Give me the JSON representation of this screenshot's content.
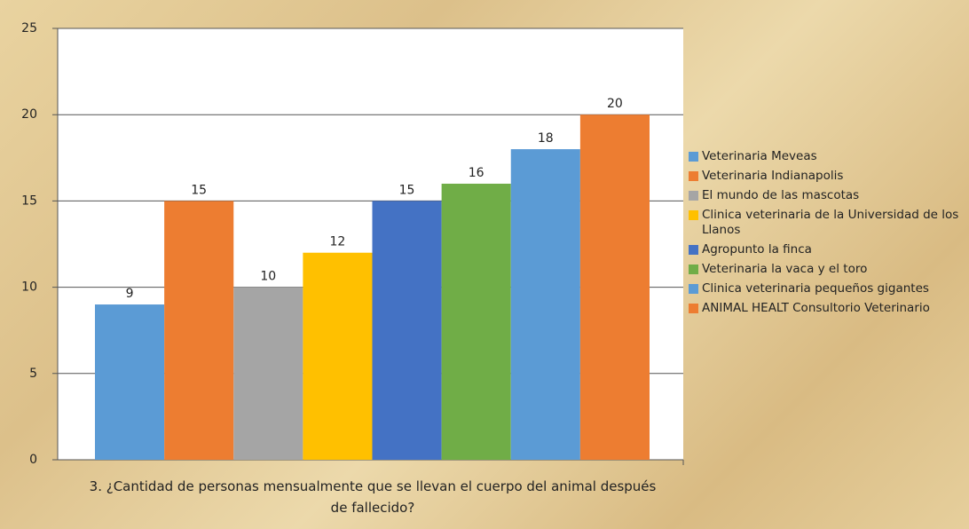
{
  "chart_data": {
    "type": "bar",
    "xlabel": "3. ¿Cantidad de personas mensualmente que se llevan el cuerpo del animal después de fallecido?",
    "series": [
      {
        "name": "Veterinaria Meveas",
        "color": "#5b9bd5",
        "values": [
          9
        ]
      },
      {
        "name": "Veterinaria Indianapolis",
        "color": "#ed7d31",
        "values": [
          15
        ]
      },
      {
        "name": "El mundo de las mascotas",
        "color": "#a5a5a5",
        "values": [
          10
        ]
      },
      {
        "name": "Clinica veterinaria de la Universidad de los Llanos",
        "color": "#ffc000",
        "values": [
          12
        ]
      },
      {
        "name": "Agropunto la finca",
        "color": "#4472c4",
        "values": [
          15
        ]
      },
      {
        "name": "Veterinaria la vaca y el toro",
        "color": "#70ad47",
        "values": [
          16
        ]
      },
      {
        "name": "Clinica veterinaria pequeños gigantes",
        "color": "#5b9bd5",
        "values": [
          18
        ]
      },
      {
        "name": "ANIMAL HEALT Consultorio Veterinario",
        "color": "#ed7d31",
        "values": [
          20
        ]
      }
    ],
    "ylim": [
      0,
      25
    ],
    "yticks": [
      0,
      5,
      10,
      15,
      20,
      25
    ],
    "grid": true,
    "legend": "right"
  }
}
